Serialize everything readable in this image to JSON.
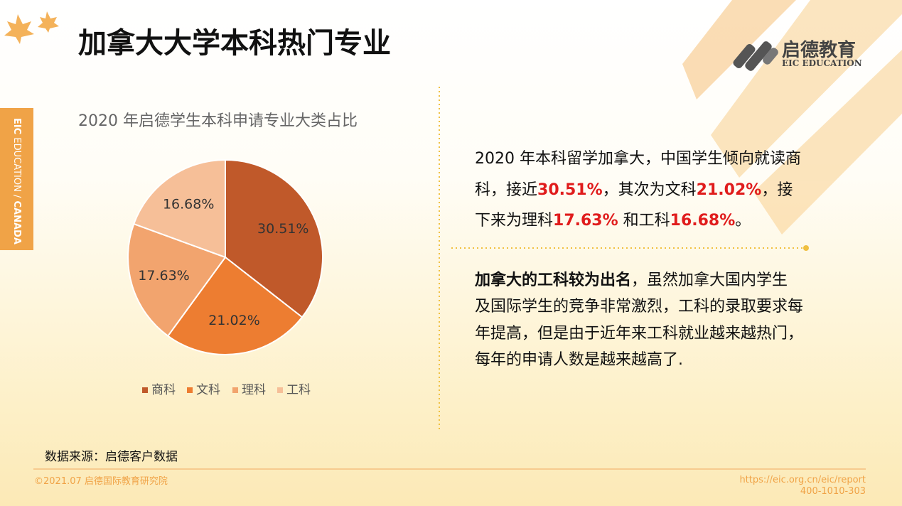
{
  "title": "加拿大大学本科热门专业",
  "logo": {
    "name": "启德教育",
    "english": "EIC EDUCATION"
  },
  "side_tab": {
    "brand": "EIC",
    "middle": "EDUCATION /",
    "country": "CANADA"
  },
  "chart_data": {
    "type": "pie",
    "title": "2020 年启德学生本科申请专业大类占比",
    "categories": [
      "商科",
      "文科",
      "理科",
      "工科"
    ],
    "values": [
      30.51,
      21.02,
      17.63,
      16.68
    ],
    "value_labels": [
      "30.51%",
      "21.02%",
      "17.63%",
      "16.68%"
    ],
    "colors": [
      "#c0592a",
      "#ed7d31",
      "#f2a46e",
      "#f6bf98"
    ],
    "legend": "bottom"
  },
  "summary": [
    "2020 年本科留学加拿大，中国学生倾向就读商科，接近",
    "30.51%",
    "，其次为文科",
    "21.02%",
    "，接下来为理科",
    "17.63%",
    " 和工科",
    "16.68%",
    "。"
  ],
  "detail": {
    "lead": "加拿大的工科较为出名",
    "body": "，虽然加拿大国内学生及国际学生的竞争非常激烈，工科的录取要求每年提高，但是由于近年来工科就业越来越热门，每年的申请人数是越来越高了."
  },
  "source": "数据来源：启德客户数据",
  "footer": {
    "copyright": "©2021.07 启德国际教育研究院",
    "url": "https://eic.org.cn/eic/report",
    "phone": "400-1010-303"
  }
}
